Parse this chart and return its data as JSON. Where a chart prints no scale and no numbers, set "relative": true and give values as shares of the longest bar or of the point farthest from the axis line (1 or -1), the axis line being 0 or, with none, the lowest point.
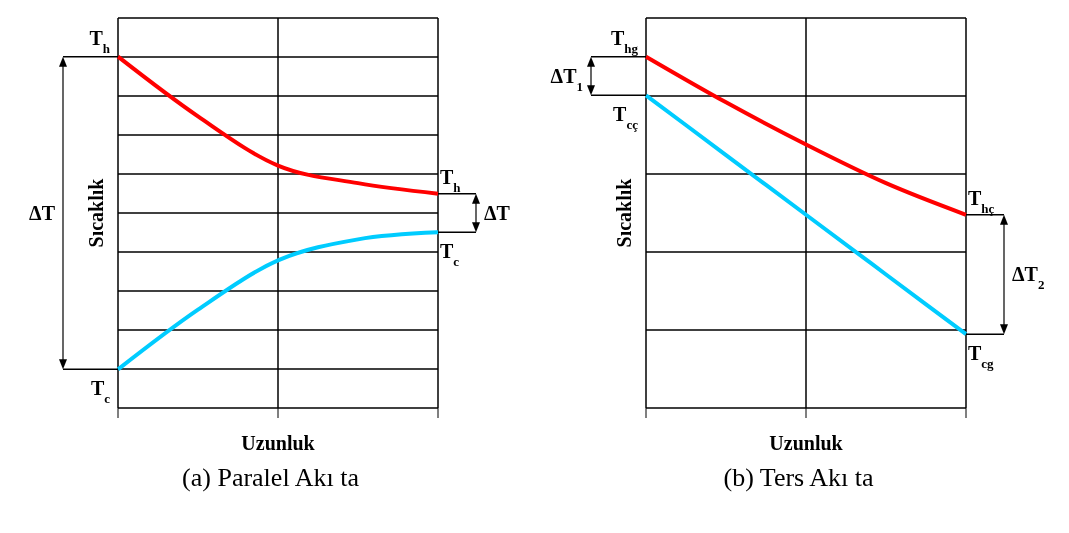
{
  "chart_data": [
    {
      "type": "line",
      "title": "(a) Paralel Akı ta",
      "xlabel": "Uzunluk",
      "ylabel": "Sıcaklık",
      "relative": true,
      "grid": true,
      "marker": "none",
      "line_style": "solid",
      "categories": [
        null,
        null,
        null,
        null,
        null
      ],
      "series": [
        {
          "color": "#ff0000",
          "values": [
            1,
            0.83,
            0.69,
            0.64,
            0.61
          ]
        },
        {
          "color": "#00ccff",
          "values": [
            0.11,
            0.28,
            0.42,
            0.48,
            0.5
          ]
        }
      ],
      "annotations": [
        "T$_{h}$",
        "T$_{c}$",
        "ΔT",
        "T$_{h}$",
        "T$_{c}$",
        "ΔT"
      ]
    },
    {
      "type": "line",
      "title": "(b) Ters Akı ta",
      "xlabel": "Uzunluk",
      "ylabel": "Sıcaklık",
      "relative": true,
      "grid": true,
      "marker": "none",
      "line_style": "solid",
      "categories": [
        null,
        null,
        null,
        null,
        null
      ],
      "series": [
        {
          "color": "#ff0000",
          "values": [
            1,
            0.87,
            0.75,
            0.64,
            0.55
          ]
        },
        {
          "color": "#00ccff",
          "values": [
            0.89,
            0.72,
            0.55,
            0.38,
            0.21
          ]
        }
      ],
      "annotations": [
        "T$_{hg}$",
        "T$_{cç}$",
        "ΔT$_{1}$",
        "T$_{hç}$",
        "T$_{cg}$",
        "ΔT$_{2}$"
      ]
    }
  ]
}
